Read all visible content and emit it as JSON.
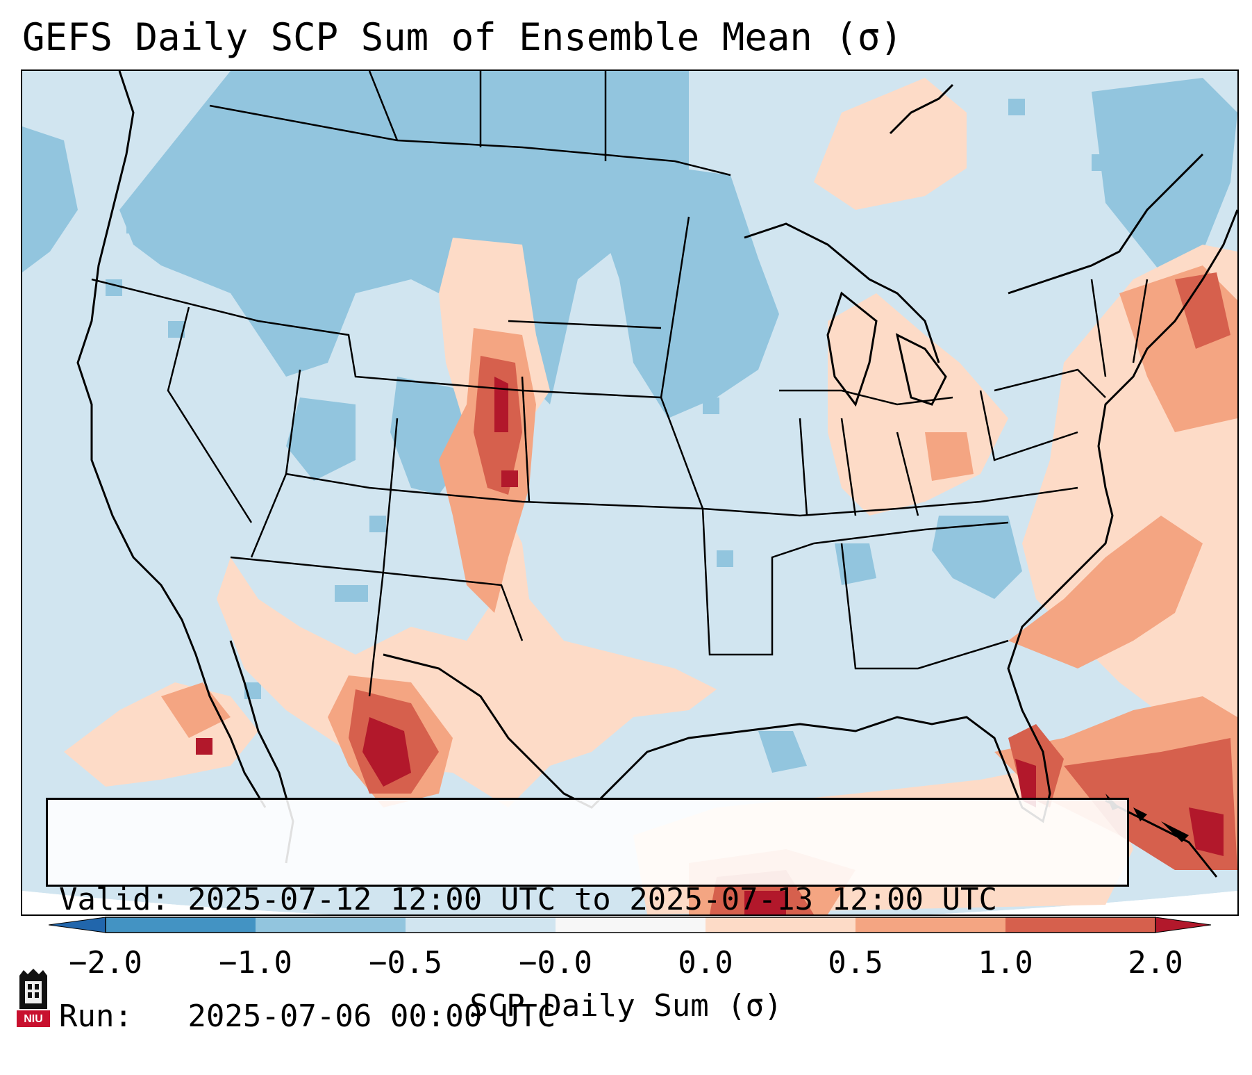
{
  "title": "GEFS Daily SCP Sum of Ensemble Mean (σ)",
  "info": {
    "valid_line": "Valid: 2025-07-12 12:00 UTC to 2025-07-13 12:00 UTC",
    "run_line": "Run:   2025-07-06 00:00 UTC"
  },
  "colorbar": {
    "label": "SCP Daily Sum (σ)",
    "tick_labels": [
      "−2.0",
      "−1.0",
      "−0.5",
      "−0.0",
      "0.0",
      "0.5",
      "1.0",
      "2.0"
    ],
    "bins": [
      {
        "range": "< -2.0",
        "color": "#2166ac"
      },
      {
        "range": "-2.0 to -1.0",
        "color": "#4393c3"
      },
      {
        "range": "-1.0 to -0.5",
        "color": "#92c5de"
      },
      {
        "range": "-0.5 to -0.0",
        "color": "#d1e5f0"
      },
      {
        "range": "-0.0 to 0.0",
        "color": "#f7f7f7"
      },
      {
        "range": "0.0 to 0.5",
        "color": "#fddbc7"
      },
      {
        "range": "0.5 to 1.0",
        "color": "#f4a582"
      },
      {
        "range": "1.0 to 2.0",
        "color": "#d6604d"
      },
      {
        "range": "> 2.0",
        "color": "#b2182b"
      }
    ]
  },
  "logo": {
    "text": "NIU",
    "icon": "university-shield-icon"
  },
  "map_regions": {
    "background_category": "-0.5 to -0.0",
    "negative_area_northwest": "-1.0 to -0.5",
    "positive_high_plains_corridor": "0.5 to 1.0",
    "strongest_southwest_mexico": "> 2.0",
    "strongest_florida": "> 2.0",
    "positive_atlantic_plume": "0.5 to 1.0"
  }
}
